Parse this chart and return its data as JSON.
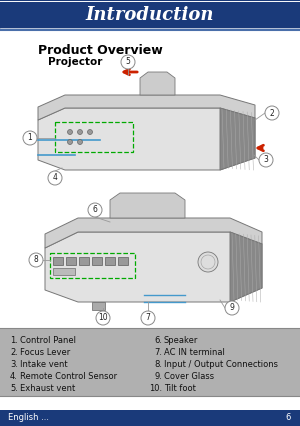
{
  "title": "Introduction",
  "title_bg_color": "#1a3a7a",
  "title_accent_color": "#4a6faa",
  "title_font_color": "#ffffff",
  "subtitle": "Product Overview",
  "sub_subtitle": "Projector",
  "footer_text": "English ...",
  "footer_page": "6",
  "footer_bg": "#1a3a7a",
  "footer_font_color": "#ffffff",
  "list_bg": "#b0b0b0",
  "list_items_left": [
    [
      "1.",
      "Control Panel"
    ],
    [
      "2.",
      "Focus Lever"
    ],
    [
      "3.",
      "Intake vent"
    ],
    [
      "4.",
      "Remote Control Sensor"
    ],
    [
      "5.",
      "Exhaust vent"
    ]
  ],
  "list_items_right": [
    [
      "6.",
      "Speaker"
    ],
    [
      "7.",
      "AC IN terminal"
    ],
    [
      "8.",
      "Input / Output Connections"
    ],
    [
      "9.",
      "Cover Glass"
    ],
    [
      "10.",
      "Tilt foot"
    ]
  ],
  "body_color": "#e2e2e2",
  "body_edge": "#777777",
  "vent_color": "#888888",
  "top_color": "#d0d0d0",
  "side_color": "#c0c0c0",
  "green_dash": "#00aa00",
  "arrow_red": "#cc2200",
  "leader_color": "#999999",
  "blue_line": "#4499cc"
}
